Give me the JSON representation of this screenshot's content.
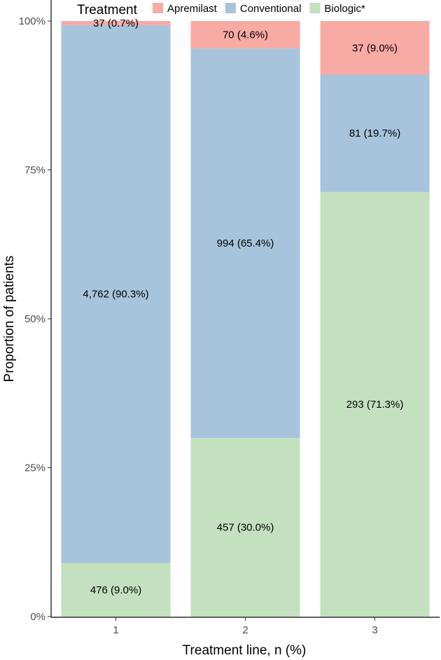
{
  "chart_data": {
    "type": "bar",
    "stacked": true,
    "normalized": true,
    "categories": [
      "1",
      "2",
      "3"
    ],
    "xlabel": "Treatment line, n (%)",
    "ylabel": "Proportion of patients",
    "ylim": [
      0,
      1
    ],
    "yticks": [
      {
        "value": 0,
        "label": "0%"
      },
      {
        "value": 0.25,
        "label": "25%"
      },
      {
        "value": 0.5,
        "label": "50%"
      },
      {
        "value": 0.75,
        "label": "75%"
      },
      {
        "value": 1,
        "label": "100%"
      }
    ],
    "grid": false,
    "legend": {
      "title": "Treatment",
      "position": "top"
    },
    "series": [
      {
        "name": "Biologic*",
        "color": "#c3e0bf",
        "values": [
          0.09,
          0.3,
          0.713
        ],
        "labels": [
          "476 (9.0%)",
          "457 (30.0%)",
          "293 (71.3%)"
        ]
      },
      {
        "name": "Conventional",
        "color": "#a7c4dc",
        "values": [
          0.903,
          0.654,
          0.197
        ],
        "labels": [
          "4,762 (90.3%)",
          "994 (65.4%)",
          "81 (19.7%)"
        ]
      },
      {
        "name": "Apremilast",
        "color": "#f8aaa5",
        "values": [
          0.007,
          0.046,
          0.09
        ],
        "labels": [
          "37 (0.7%)",
          "70 (4.6%)",
          "37 (9.0%)"
        ]
      }
    ],
    "legend_order": [
      "Apremilast",
      "Conventional",
      "Biologic*"
    ]
  }
}
